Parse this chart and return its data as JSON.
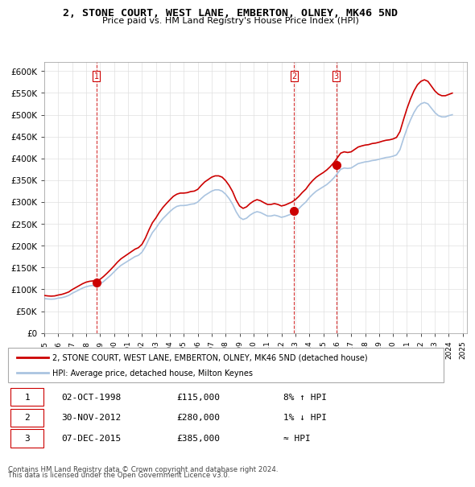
{
  "title": "2, STONE COURT, WEST LANE, EMBERTON, OLNEY, MK46 5ND",
  "subtitle": "Price paid vs. HM Land Registry's House Price Index (HPI)",
  "legend_line1": "2, STONE COURT, WEST LANE, EMBERTON, OLNEY, MK46 5ND (detached house)",
  "legend_line2": "HPI: Average price, detached house, Milton Keynes",
  "footer1": "Contains HM Land Registry data © Crown copyright and database right 2024.",
  "footer2": "This data is licensed under the Open Government Licence v3.0.",
  "sales": [
    {
      "num": 1,
      "date": "02-OCT-1998",
      "price": 115000,
      "hpi_rel": "8% ↑ HPI",
      "year": 1998.75
    },
    {
      "num": 2,
      "date": "30-NOV-2012",
      "price": 280000,
      "hpi_rel": "1% ↓ HPI",
      "year": 2012.92
    },
    {
      "num": 3,
      "date": "07-DEC-2015",
      "price": 385000,
      "hpi_rel": "≈ HPI",
      "year": 2015.93
    }
  ],
  "hpi_color": "#aac4e0",
  "price_color": "#cc0000",
  "sale_dot_color": "#cc0000",
  "vline_color": "#cc0000",
  "ylim": [
    0,
    620000
  ],
  "yticks": [
    0,
    50000,
    100000,
    150000,
    200000,
    250000,
    300000,
    350000,
    400000,
    450000,
    500000,
    550000,
    600000
  ],
  "hpi_data": {
    "years": [
      1995.0,
      1995.25,
      1995.5,
      1995.75,
      1996.0,
      1996.25,
      1996.5,
      1996.75,
      1997.0,
      1997.25,
      1997.5,
      1997.75,
      1998.0,
      1998.25,
      1998.5,
      1998.75,
      1999.0,
      1999.25,
      1999.5,
      1999.75,
      2000.0,
      2000.25,
      2000.5,
      2000.75,
      2001.0,
      2001.25,
      2001.5,
      2001.75,
      2002.0,
      2002.25,
      2002.5,
      2002.75,
      2003.0,
      2003.25,
      2003.5,
      2003.75,
      2004.0,
      2004.25,
      2004.5,
      2004.75,
      2005.0,
      2005.25,
      2005.5,
      2005.75,
      2006.0,
      2006.25,
      2006.5,
      2006.75,
      2007.0,
      2007.25,
      2007.5,
      2007.75,
      2008.0,
      2008.25,
      2008.5,
      2008.75,
      2009.0,
      2009.25,
      2009.5,
      2009.75,
      2010.0,
      2010.25,
      2010.5,
      2010.75,
      2011.0,
      2011.25,
      2011.5,
      2011.75,
      2012.0,
      2012.25,
      2012.5,
      2012.75,
      2013.0,
      2013.25,
      2013.5,
      2013.75,
      2014.0,
      2014.25,
      2014.5,
      2014.75,
      2015.0,
      2015.25,
      2015.5,
      2015.75,
      2016.0,
      2016.25,
      2016.5,
      2016.75,
      2017.0,
      2017.25,
      2017.5,
      2017.75,
      2018.0,
      2018.25,
      2018.5,
      2018.75,
      2019.0,
      2019.25,
      2019.5,
      2019.75,
      2020.0,
      2020.25,
      2020.5,
      2020.75,
      2021.0,
      2021.25,
      2021.5,
      2021.75,
      2022.0,
      2022.25,
      2022.5,
      2022.75,
      2023.0,
      2023.25,
      2023.5,
      2023.75,
      2024.0,
      2024.25
    ],
    "values": [
      79000,
      78000,
      77500,
      78000,
      80000,
      81000,
      83000,
      86000,
      91000,
      95000,
      99000,
      103000,
      106000,
      108000,
      109000,
      107000,
      112000,
      118000,
      125000,
      132000,
      140000,
      148000,
      155000,
      160000,
      165000,
      170000,
      175000,
      178000,
      185000,
      198000,
      215000,
      230000,
      240000,
      252000,
      262000,
      270000,
      278000,
      285000,
      290000,
      292000,
      292000,
      293000,
      295000,
      296000,
      300000,
      308000,
      315000,
      320000,
      325000,
      328000,
      328000,
      325000,
      318000,
      308000,
      295000,
      278000,
      265000,
      260000,
      263000,
      270000,
      275000,
      278000,
      276000,
      272000,
      268000,
      268000,
      270000,
      268000,
      265000,
      267000,
      270000,
      273000,
      278000,
      285000,
      293000,
      300000,
      310000,
      318000,
      325000,
      330000,
      335000,
      340000,
      347000,
      355000,
      365000,
      375000,
      378000,
      377000,
      378000,
      383000,
      388000,
      390000,
      392000,
      393000,
      395000,
      396000,
      398000,
      400000,
      402000,
      403000,
      405000,
      408000,
      420000,
      445000,
      468000,
      488000,
      505000,
      518000,
      525000,
      528000,
      525000,
      515000,
      505000,
      498000,
      495000,
      495000,
      498000,
      500000
    ]
  },
  "hpi_indexed_data": {
    "years": [
      1995.0,
      1995.25,
      1995.5,
      1995.75,
      1996.0,
      1996.25,
      1996.5,
      1996.75,
      1997.0,
      1997.25,
      1997.5,
      1997.75,
      1998.0,
      1998.25,
      1998.5,
      1998.75,
      1999.0,
      1999.25,
      1999.5,
      1999.75,
      2000.0,
      2000.25,
      2000.5,
      2000.75,
      2001.0,
      2001.25,
      2001.5,
      2001.75,
      2002.0,
      2002.25,
      2002.5,
      2002.75,
      2003.0,
      2003.25,
      2003.5,
      2003.75,
      2004.0,
      2004.25,
      2004.5,
      2004.75,
      2005.0,
      2005.25,
      2005.5,
      2005.75,
      2006.0,
      2006.25,
      2006.5,
      2006.75,
      2007.0,
      2007.25,
      2007.5,
      2007.75,
      2008.0,
      2008.25,
      2008.5,
      2008.75,
      2009.0,
      2009.25,
      2009.5,
      2009.75,
      2010.0,
      2010.25,
      2010.5,
      2010.75,
      2011.0,
      2011.25,
      2011.5,
      2011.75,
      2012.0,
      2012.25,
      2012.5,
      2012.75,
      2013.0,
      2013.25,
      2013.5,
      2013.75,
      2014.0,
      2014.25,
      2014.5,
      2014.75,
      2015.0,
      2015.25,
      2015.5,
      2015.75,
      2016.0,
      2016.25,
      2016.5,
      2016.75,
      2017.0,
      2017.25,
      2017.5,
      2017.75,
      2018.0,
      2018.25,
      2018.5,
      2018.75,
      2019.0,
      2019.25,
      2019.5,
      2019.75,
      2020.0,
      2020.25,
      2020.5,
      2020.75,
      2021.0,
      2021.25,
      2021.5,
      2021.75,
      2022.0,
      2022.25,
      2022.5,
      2022.75,
      2023.0,
      2023.25,
      2023.5,
      2023.75,
      2024.0,
      2024.25
    ],
    "values": [
      86000,
      85000,
      84500,
      85000,
      87000,
      88500,
      91000,
      94000,
      99500,
      104000,
      108500,
      113000,
      116500,
      118500,
      119500,
      117500,
      123000,
      129500,
      137000,
      145000,
      153500,
      162500,
      170000,
      175500,
      181000,
      186500,
      192000,
      195500,
      203000,
      217500,
      236000,
      252500,
      263500,
      276500,
      287500,
      296500,
      305000,
      313000,
      318000,
      320500,
      320500,
      321500,
      324000,
      325000,
      329000,
      338000,
      346000,
      351500,
      357000,
      360000,
      360000,
      357000,
      349000,
      338000,
      324000,
      305000,
      291000,
      285500,
      289000,
      296500,
      302000,
      305500,
      303000,
      298500,
      294500,
      294500,
      296500,
      294500,
      291000,
      293000,
      296500,
      300000,
      305500,
      313000,
      322000,
      329500,
      340500,
      349500,
      357000,
      362500,
      367500,
      373500,
      381000,
      390000,
      401000,
      412000,
      415000,
      413500,
      415000,
      420500,
      426000,
      428500,
      430500,
      431500,
      434000,
      435000,
      437000,
      439500,
      441500,
      442500,
      444500,
      448000,
      461500,
      488500,
      514000,
      536000,
      554500,
      568500,
      576500,
      580000,
      576500,
      565500,
      554500,
      547000,
      543500,
      543500,
      546500,
      549500
    ]
  }
}
